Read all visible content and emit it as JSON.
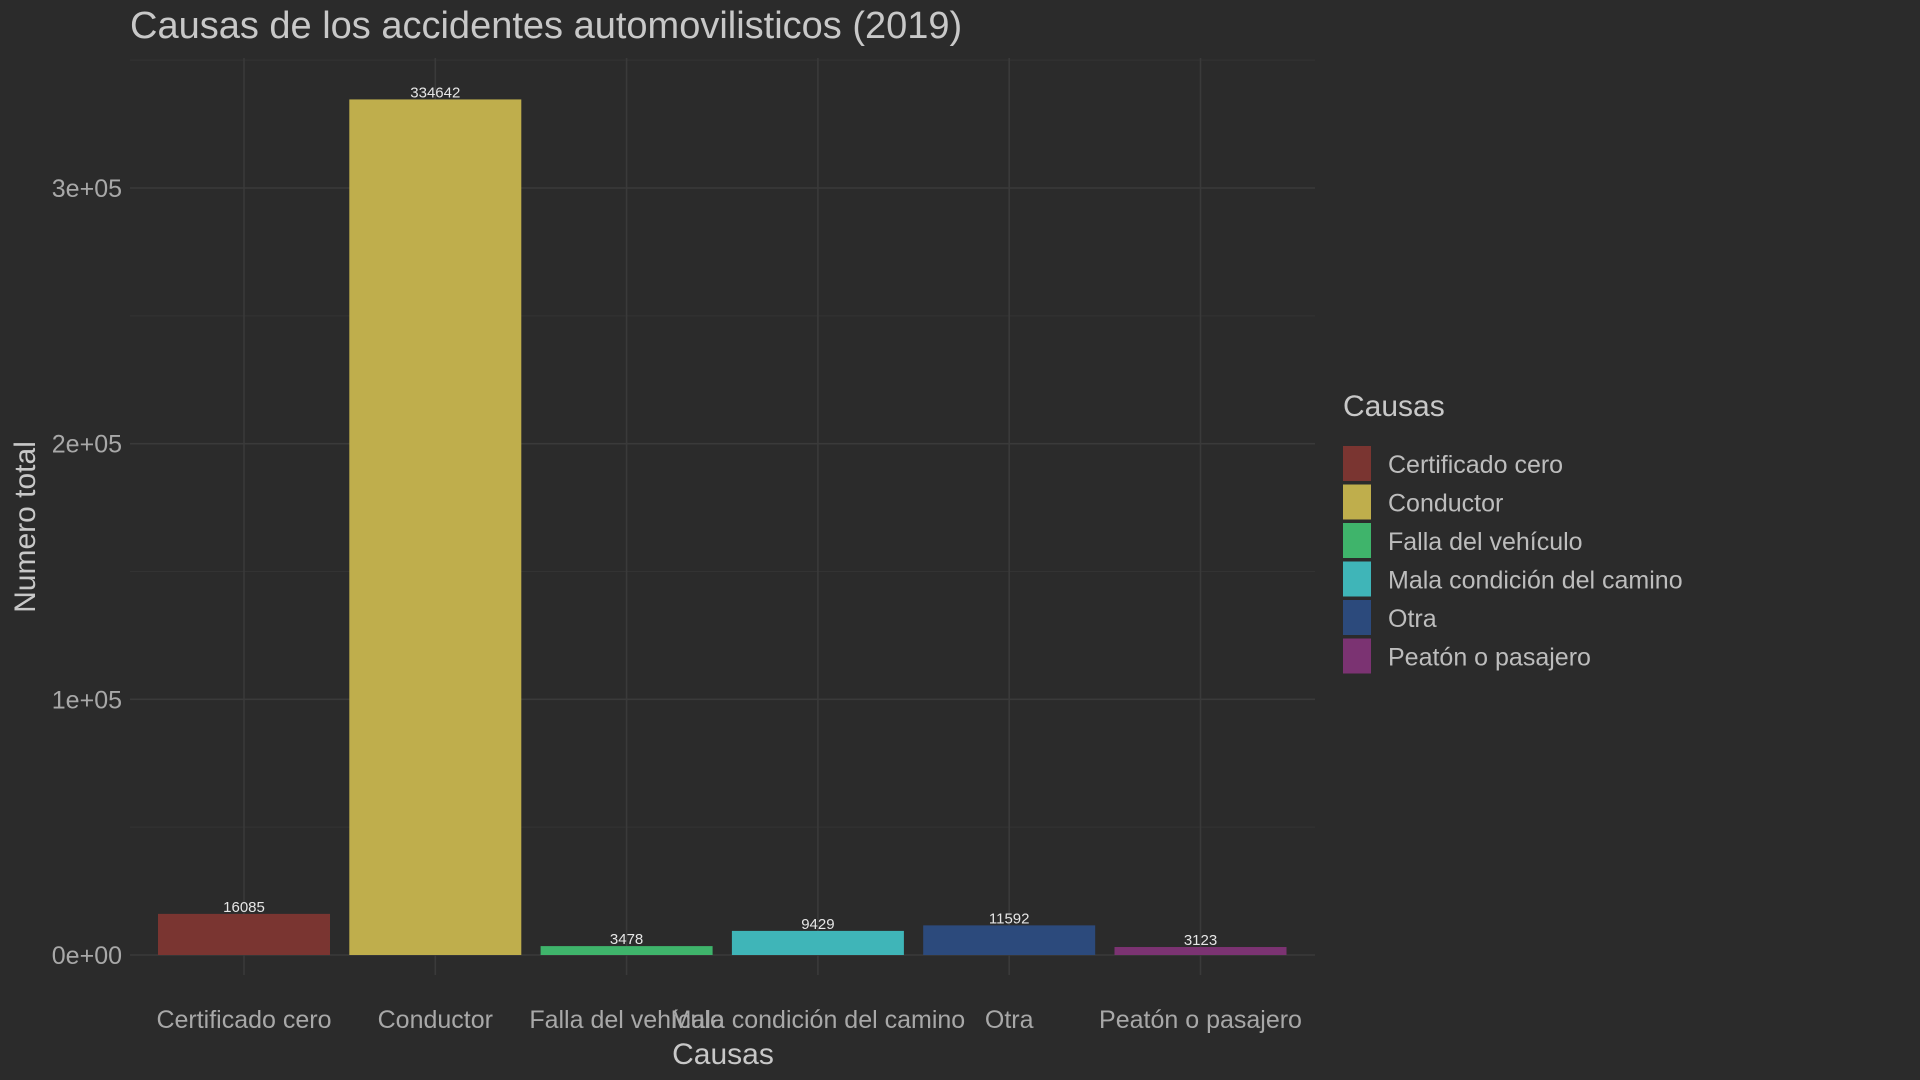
{
  "chart_data": {
    "type": "bar",
    "title": "Causas de los accidentes automovilisticos (2019)",
    "xlabel": "Causas",
    "ylabel": "Numero total",
    "categories": [
      "Certificado cero",
      "Conductor",
      "Falla del vehículo",
      "Mala condición del camino",
      "Otra",
      "Peatón o pasajero"
    ],
    "values": [
      16085,
      334642,
      3478,
      9429,
      11592,
      3123
    ],
    "data_labels": [
      "16085",
      "334642",
      "3478",
      "9429",
      "11592",
      "3123"
    ],
    "colors": [
      "#7a3531",
      "#bfae4c",
      "#3fb46b",
      "#3fb5b8",
      "#2c4a7c",
      "#7b3372"
    ],
    "ylim": [
      0,
      350000
    ],
    "yticks": [
      0,
      100000,
      200000,
      300000
    ],
    "ytick_labels": [
      "0e+00",
      "1e+05",
      "2e+05",
      "3e+05"
    ],
    "grid": true,
    "legend": {
      "title": "Causas",
      "position": "right",
      "entries": [
        "Certificado cero",
        "Conductor",
        "Falla del vehículo",
        "Mala condición del camino",
        "Otra",
        "Peatón o pasajero"
      ]
    },
    "background": "#2b2b2b"
  }
}
